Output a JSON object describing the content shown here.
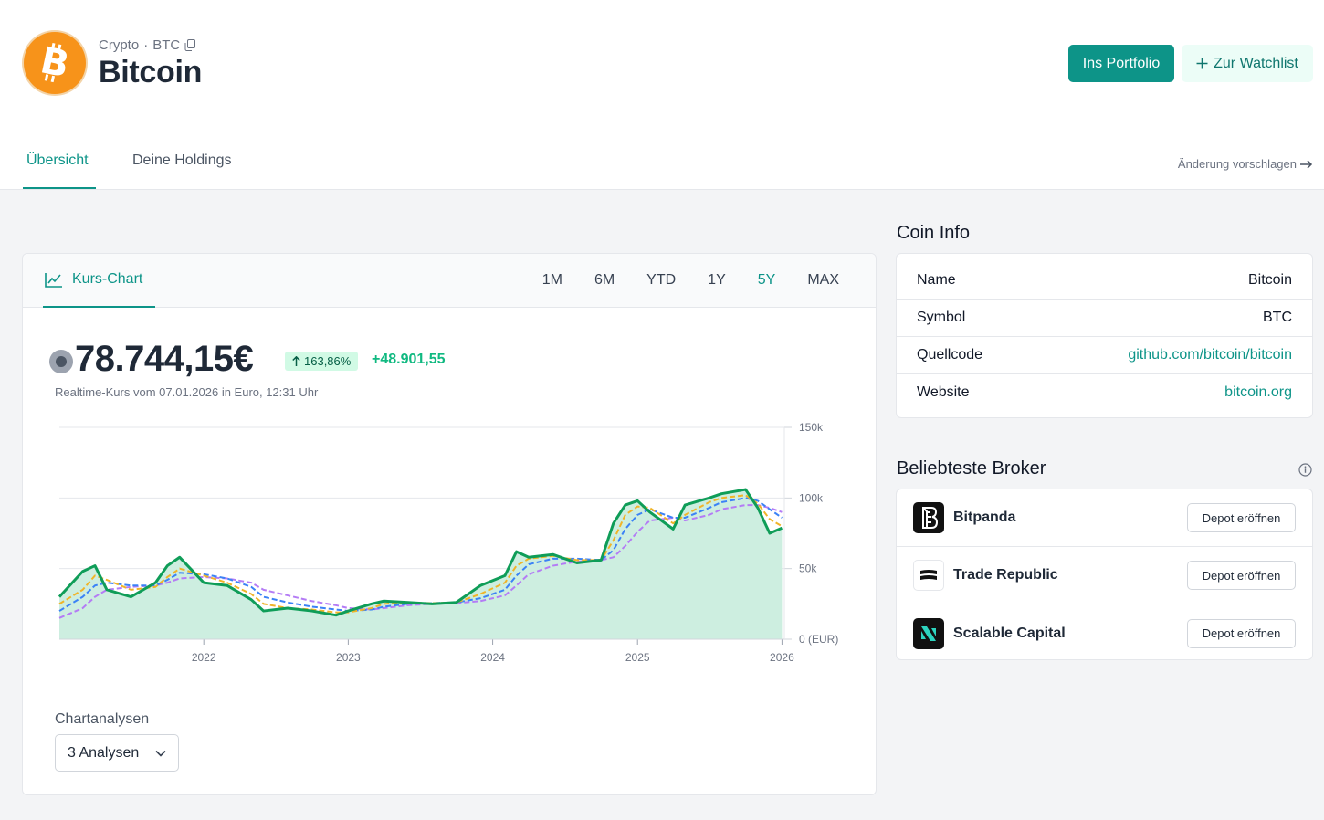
{
  "header": {
    "category": "Crypto",
    "symbol": "BTC",
    "title": "Bitcoin",
    "portfolio_button": "Ins Portfolio",
    "watchlist_button": "Zur Watchlist",
    "logo_icon": "bitcoin-logo"
  },
  "tabs": [
    {
      "label": "Übersicht",
      "active": true
    },
    {
      "label": "Deine Holdings",
      "active": false
    }
  ],
  "suggest_link": "Änderung vorschlagen",
  "chart_panel": {
    "tab_label": "Kurs-Chart",
    "ranges": [
      "1M",
      "6M",
      "YTD",
      "1Y",
      "5Y",
      "MAX"
    ],
    "active_range": "5Y",
    "price": "78.744,15€",
    "change_pct": "163,86%",
    "change_abs": "+48.901,55",
    "price_note": "Realtime-Kurs vom 07.01.2026 in Euro, 12:31 Uhr",
    "analysen_label": "Chartanalysen",
    "analysen_value": "3 Analysen"
  },
  "chart_data": {
    "type": "area",
    "x_tick_labels": [
      "2022",
      "2023",
      "2024",
      "2025",
      "2026"
    ],
    "y_tick_labels": [
      "150k",
      "100k",
      "50k",
      "0 (EUR)"
    ],
    "ylim": [
      0,
      150000
    ],
    "grid": true,
    "x": [
      "2021-01",
      "2021-03",
      "2021-04",
      "2021-05",
      "2021-07",
      "2021-09",
      "2021-10",
      "2021-11",
      "2022-01",
      "2022-03",
      "2022-05",
      "2022-06",
      "2022-08",
      "2022-10",
      "2022-12",
      "2023-01",
      "2023-03",
      "2023-04",
      "2023-06",
      "2023-08",
      "2023-10",
      "2023-12",
      "2024-02",
      "2024-03",
      "2024-04",
      "2024-06",
      "2024-08",
      "2024-10",
      "2024-11",
      "2024-12",
      "2025-01",
      "2025-02",
      "2025-04",
      "2025-05",
      "2025-07",
      "2025-08",
      "2025-10",
      "2025-11",
      "2025-12",
      "2026-01"
    ],
    "series": [
      {
        "values": [
          30000,
          48000,
          52000,
          35000,
          30000,
          40000,
          52000,
          58000,
          40000,
          38000,
          28000,
          20000,
          22000,
          20000,
          17000,
          20000,
          25000,
          27000,
          26000,
          25000,
          26000,
          38000,
          45000,
          62000,
          58000,
          60000,
          54000,
          56000,
          82000,
          95000,
          98000,
          90000,
          78000,
          95000,
          100000,
          103000,
          106000,
          93000,
          75000,
          78744
        ]
      },
      {
        "values": [
          25000,
          35000,
          45000,
          42000,
          35000,
          37000,
          44000,
          50000,
          45000,
          40000,
          32000,
          25000,
          22000,
          21000,
          19000,
          19000,
          22000,
          25000,
          26000,
          25500,
          26000,
          32000,
          40000,
          52000,
          57000,
          59000,
          56000,
          56000,
          70000,
          88000,
          94000,
          93000,
          82000,
          88000,
          97000,
          100000,
          102000,
          96000,
          85000,
          80000
        ]
      },
      {
        "values": [
          20000,
          30000,
          38000,
          40000,
          38000,
          38000,
          42000,
          47000,
          46000,
          43000,
          37000,
          30000,
          26000,
          23000,
          21000,
          20000,
          21000,
          23000,
          25000,
          25500,
          26000,
          29000,
          35000,
          45000,
          53000,
          57000,
          57000,
          56000,
          63000,
          78000,
          88000,
          92000,
          86000,
          86000,
          93000,
          97000,
          100000,
          98000,
          92000,
          86000
        ]
      },
      {
        "values": [
          15000,
          22000,
          30000,
          35000,
          37000,
          38000,
          40000,
          43000,
          44000,
          43000,
          40000,
          35000,
          31000,
          27000,
          24000,
          22000,
          21000,
          22000,
          24000,
          25000,
          25500,
          27000,
          31000,
          38000,
          46000,
          52000,
          55000,
          56000,
          58000,
          66000,
          76000,
          84000,
          86000,
          84000,
          88000,
          92000,
          95000,
          95000,
          93000,
          90000
        ]
      }
    ],
    "colors": {
      "price": "#0f9d58",
      "fill": "#cdeee0",
      "ma1": "#f0b429",
      "ma2": "#3b82f6",
      "ma3": "#b47cf5"
    }
  },
  "coin_info": {
    "title": "Coin Info",
    "rows": [
      {
        "key": "Name",
        "value": "Bitcoin",
        "link": false
      },
      {
        "key": "Symbol",
        "value": "BTC",
        "link": false
      },
      {
        "key": "Quellcode",
        "value": "github.com/bitcoin/bitcoin",
        "link": true
      },
      {
        "key": "Website",
        "value": "bitcoin.org",
        "link": true
      }
    ]
  },
  "brokers": {
    "title": "Beliebteste Broker",
    "button_label": "Depot eröffnen",
    "items": [
      {
        "name": "Bitpanda",
        "icon": "bitpanda-logo"
      },
      {
        "name": "Trade Republic",
        "icon": "trade-republic-logo"
      },
      {
        "name": "Scalable Capital",
        "icon": "scalable-capital-logo"
      }
    ]
  }
}
